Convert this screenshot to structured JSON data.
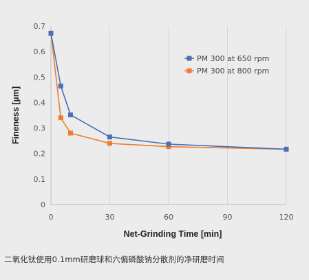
{
  "chart_data": {
    "type": "line",
    "title": "",
    "xlabel": "Net-Grinding Time [min]",
    "ylabel": "Fineness [µm]",
    "xlim": [
      0,
      120
    ],
    "ylim": [
      0,
      0.7
    ],
    "xticks": [
      0,
      30,
      60,
      90,
      120
    ],
    "yticks": [
      0,
      0.1,
      0.2,
      0.3,
      0.4,
      0.5,
      0.6,
      0.7
    ],
    "xtick_labels": [
      "0",
      "30",
      "60",
      "90",
      "120"
    ],
    "ytick_labels": [
      "0",
      "0.1",
      "0.2",
      "0.3",
      "0.4",
      "0.5",
      "0.6",
      "0.7"
    ],
    "grid": "vertical-gridlines",
    "legend_position": "top-right",
    "series": [
      {
        "name": "PM 300 at 650 rpm",
        "color": "#4a6fb5",
        "marker": "square",
        "x": [
          0,
          5,
          10,
          30,
          60,
          120
        ],
        "y": [
          0.672,
          0.465,
          0.352,
          0.265,
          0.237,
          0.217
        ]
      },
      {
        "name": "PM 300 at 800 rpm",
        "color": "#ed7d31",
        "marker": "square",
        "x": [
          0,
          5,
          10,
          30,
          60,
          120
        ],
        "y": [
          0.672,
          0.34,
          0.28,
          0.24,
          0.227,
          0.217
        ]
      }
    ]
  },
  "caption": "二氧化钛使用0.1mm研磨球和六偏磷酸钠分散剂的净研磨时间"
}
